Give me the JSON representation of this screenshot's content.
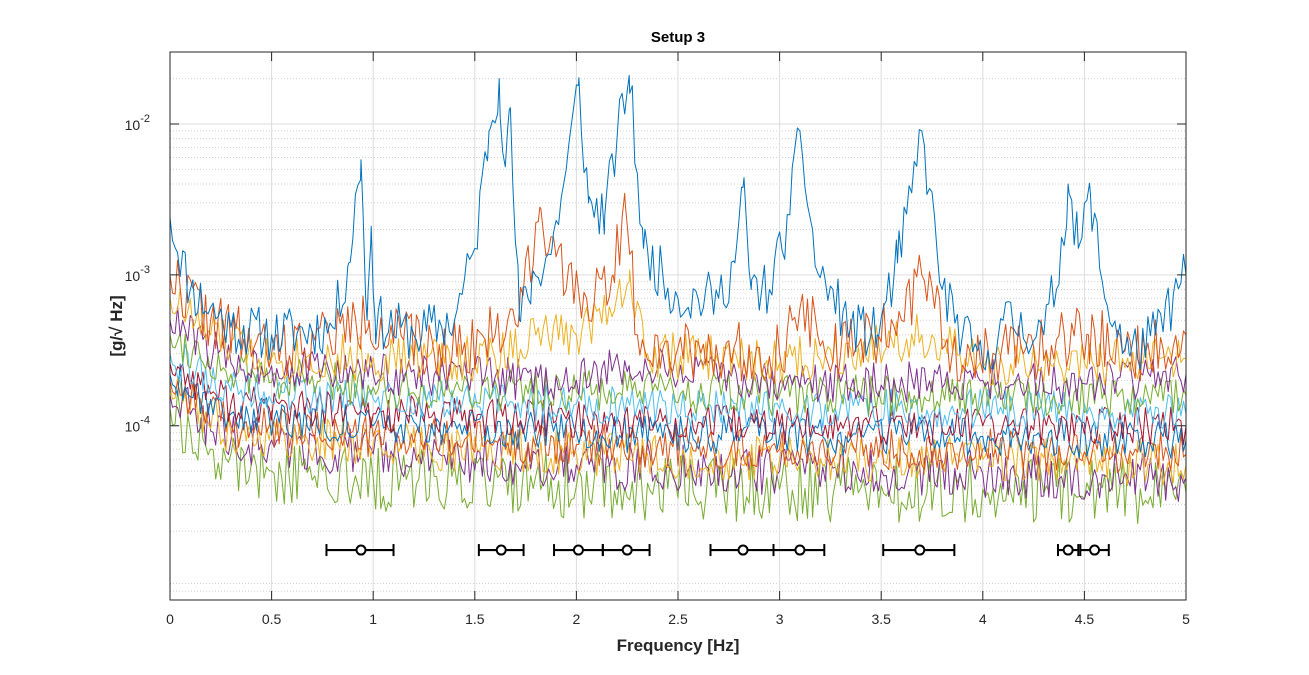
{
  "chart_data": {
    "type": "line",
    "title": "Setup 3",
    "xlabel": "Frequency [Hz]",
    "ylabel": "[g/√ Hz]",
    "xlim": [
      0,
      5
    ],
    "ylim": [
      7e-06,
      0.03
    ],
    "yscale": "log",
    "grid": true,
    "x_ticks": [
      "0",
      "0.5",
      "1",
      "1.5",
      "2",
      "2.5",
      "3",
      "3.5",
      "4",
      "4.5",
      "5"
    ],
    "y_ticks": [
      {
        "base": "10",
        "exp": "-4",
        "value": 0.0001
      },
      {
        "base": "10",
        "exp": "-3",
        "value": 0.001
      },
      {
        "base": "10",
        "exp": "-2",
        "value": 0.01
      }
    ],
    "series_colors": [
      "#0072BD",
      "#D95319",
      "#EDB120",
      "#7E2F8E",
      "#77AC30",
      "#4DBEEE",
      "#A2142F",
      "#0072BD",
      "#D95319",
      "#EDB120",
      "#7E2F8E",
      "#77AC30"
    ],
    "series": [
      {
        "color": "#0072BD",
        "seed": 11,
        "noise": 0.18,
        "points": [
          [
            0,
            0.0024
          ],
          [
            0.1,
            0.0008
          ],
          [
            0.3,
            0.00045
          ],
          [
            0.5,
            0.0004
          ],
          [
            0.8,
            0.00045
          ],
          [
            0.88,
            0.0012
          ],
          [
            0.94,
            0.0058
          ],
          [
            0.97,
            0.0005
          ],
          [
            0.99,
            0.0021
          ],
          [
            1.01,
            0.0005
          ],
          [
            1.2,
            0.0004
          ],
          [
            1.4,
            0.0005
          ],
          [
            1.5,
            0.0015
          ],
          [
            1.57,
            0.009
          ],
          [
            1.62,
            0.02
          ],
          [
            1.65,
            0.0052
          ],
          [
            1.67,
            0.0125
          ],
          [
            1.72,
            0.0005
          ],
          [
            1.78,
            0.0009
          ],
          [
            1.88,
            0.0015
          ],
          [
            1.95,
            0.005
          ],
          [
            2.01,
            0.018
          ],
          [
            2.06,
            0.003
          ],
          [
            2.14,
            0.0025
          ],
          [
            2.2,
            0.008
          ],
          [
            2.26,
            0.021
          ],
          [
            2.33,
            0.0015
          ],
          [
            2.5,
            0.0007
          ],
          [
            2.7,
            0.0007
          ],
          [
            2.78,
            0.0012
          ],
          [
            2.82,
            0.0038
          ],
          [
            2.86,
            0.0008
          ],
          [
            2.95,
            0.0008
          ],
          [
            3.05,
            0.0025
          ],
          [
            3.1,
            0.009
          ],
          [
            3.18,
            0.0011
          ],
          [
            3.35,
            0.00045
          ],
          [
            3.48,
            0.0004
          ],
          [
            3.58,
            0.0012
          ],
          [
            3.65,
            0.0035
          ],
          [
            3.7,
            0.009
          ],
          [
            3.8,
            0.0008
          ],
          [
            3.9,
            0.0004
          ],
          [
            4.0,
            0.00025
          ],
          [
            4.1,
            0.0005
          ],
          [
            4.3,
            0.0004
          ],
          [
            4.38,
            0.0012
          ],
          [
            4.42,
            0.004
          ],
          [
            4.47,
            0.0015
          ],
          [
            4.53,
            0.0034
          ],
          [
            4.6,
            0.0007
          ],
          [
            4.72,
            0.0003
          ],
          [
            4.85,
            0.0004
          ],
          [
            5.0,
            0.001
          ]
        ]
      },
      {
        "color": "#D95319",
        "seed": 22,
        "noise": 0.2,
        "points": [
          [
            0,
            0.001
          ],
          [
            0.2,
            0.0005
          ],
          [
            0.5,
            0.0003
          ],
          [
            0.98,
            0.0005
          ],
          [
            1.3,
            0.0003
          ],
          [
            1.6,
            0.0004
          ],
          [
            1.72,
            0.0006
          ],
          [
            1.82,
            0.0028
          ],
          [
            1.95,
            0.0008
          ],
          [
            2.05,
            0.0007
          ],
          [
            2.18,
            0.001
          ],
          [
            2.24,
            0.003
          ],
          [
            2.3,
            0.0004
          ],
          [
            2.5,
            0.00033
          ],
          [
            3.0,
            0.0003
          ],
          [
            3.1,
            0.0006
          ],
          [
            3.3,
            0.0003
          ],
          [
            3.6,
            0.0005
          ],
          [
            3.7,
            0.001
          ],
          [
            3.85,
            0.0003
          ],
          [
            4.2,
            0.0003
          ],
          [
            4.52,
            0.0004
          ],
          [
            4.8,
            0.0003
          ],
          [
            5.0,
            0.0004
          ]
        ]
      },
      {
        "color": "#EDB120",
        "seed": 33,
        "noise": 0.16,
        "points": [
          [
            0,
            0.0007
          ],
          [
            0.2,
            0.0004
          ],
          [
            0.5,
            0.00028
          ],
          [
            1.2,
            0.00028
          ],
          [
            1.6,
            0.00028
          ],
          [
            1.8,
            0.0004
          ],
          [
            2.0,
            0.0004
          ],
          [
            2.26,
            0.0009
          ],
          [
            2.35,
            0.0003
          ],
          [
            3.0,
            0.00026
          ],
          [
            3.7,
            0.0004
          ],
          [
            4.0,
            0.00024
          ],
          [
            4.5,
            0.00026
          ],
          [
            5.0,
            0.00028
          ]
        ]
      },
      {
        "color": "#7E2F8E",
        "seed": 44,
        "noise": 0.14,
        "points": [
          [
            0,
            0.0005
          ],
          [
            0.3,
            0.00026
          ],
          [
            1.0,
            0.00022
          ],
          [
            2.0,
            0.0002
          ],
          [
            2.26,
            0.00025
          ],
          [
            3.0,
            0.00019
          ],
          [
            4.0,
            0.0002
          ],
          [
            4.5,
            0.00019
          ],
          [
            5.0,
            0.00022
          ]
        ]
      },
      {
        "color": "#77AC30",
        "seed": 55,
        "noise": 0.14,
        "points": [
          [
            0,
            0.0004
          ],
          [
            0.3,
            0.00022
          ],
          [
            1.0,
            0.00018
          ],
          [
            2.0,
            0.00017
          ],
          [
            3.0,
            0.00016
          ],
          [
            4.0,
            0.00016
          ],
          [
            5.0,
            0.00016
          ]
        ]
      },
      {
        "color": "#4DBEEE",
        "seed": 66,
        "noise": 0.13,
        "points": [
          [
            0,
            0.0003
          ],
          [
            0.3,
            0.00017
          ],
          [
            1.0,
            0.00015
          ],
          [
            2.0,
            0.00014
          ],
          [
            3.0,
            0.00013
          ],
          [
            4.0,
            0.00013
          ],
          [
            5.0,
            0.00012
          ]
        ]
      },
      {
        "color": "#A2142F",
        "seed": 77,
        "noise": 0.13,
        "points": [
          [
            0,
            0.00026
          ],
          [
            0.3,
            0.00014
          ],
          [
            1.0,
            0.00012
          ],
          [
            2.0,
            0.00011
          ],
          [
            3.0,
            0.0001
          ],
          [
            4.0,
            0.0001
          ],
          [
            5.0,
            0.0001
          ]
        ]
      },
      {
        "color": "#0072BD",
        "seed": 88,
        "noise": 0.13,
        "points": [
          [
            0,
            0.00022
          ],
          [
            0.3,
            0.00012
          ],
          [
            1.0,
            0.0001
          ],
          [
            2.0,
            9e-05
          ],
          [
            3.0,
            8.5e-05
          ],
          [
            4.0,
            8.5e-05
          ],
          [
            5.0,
            8e-05
          ]
        ]
      },
      {
        "color": "#D95319",
        "seed": 99,
        "noise": 0.14,
        "points": [
          [
            0,
            0.0002
          ],
          [
            0.3,
            0.0001
          ],
          [
            1.0,
            8.5e-05
          ],
          [
            2.0,
            7.5e-05
          ],
          [
            3.0,
            7e-05
          ],
          [
            4.0,
            7e-05
          ],
          [
            5.0,
            6.5e-05
          ]
        ]
      },
      {
        "color": "#EDB120",
        "seed": 111,
        "noise": 0.15,
        "points": [
          [
            0,
            0.00018
          ],
          [
            0.3,
            9e-05
          ],
          [
            1.0,
            7.5e-05
          ],
          [
            2.0,
            6.5e-05
          ],
          [
            3.0,
            6e-05
          ],
          [
            4.0,
            6e-05
          ],
          [
            5.0,
            5.5e-05
          ]
        ]
      },
      {
        "color": "#7E2F8E",
        "seed": 122,
        "noise": 0.16,
        "points": [
          [
            0,
            0.00016
          ],
          [
            0.3,
            8e-05
          ],
          [
            1.0,
            6.5e-05
          ],
          [
            2.0,
            5.5e-05
          ],
          [
            3.0,
            5e-05
          ],
          [
            4.0,
            4.8e-05
          ],
          [
            5.0,
            4.5e-05
          ]
        ]
      },
      {
        "color": "#77AC30",
        "seed": 133,
        "noise": 0.22,
        "points": [
          [
            0,
            0.00013
          ],
          [
            0.2,
            7e-05
          ],
          [
            0.5,
            5e-05
          ],
          [
            1.0,
            4.5e-05
          ],
          [
            2.0,
            4e-05
          ],
          [
            3.0,
            3.8e-05
          ],
          [
            4.0,
            3.8e-05
          ],
          [
            5.0,
            3.6e-05
          ]
        ]
      }
    ],
    "frequency_estimates": {
      "y": 1.5e-05,
      "items": [
        {
          "center": 0.94,
          "low": 0.77,
          "high": 1.1
        },
        {
          "center": 1.63,
          "low": 1.52,
          "high": 1.74
        },
        {
          "center": 2.01,
          "low": 1.89,
          "high": 2.13
        },
        {
          "center": 2.25,
          "low": 2.13,
          "high": 2.36
        },
        {
          "center": 2.82,
          "low": 2.66,
          "high": 2.97
        },
        {
          "center": 3.1,
          "low": 2.97,
          "high": 3.22
        },
        {
          "center": 3.69,
          "low": 3.51,
          "high": 3.86
        },
        {
          "center": 4.42,
          "low": 4.37,
          "high": 4.47
        },
        {
          "center": 4.55,
          "low": 4.48,
          "high": 4.62
        }
      ]
    }
  }
}
